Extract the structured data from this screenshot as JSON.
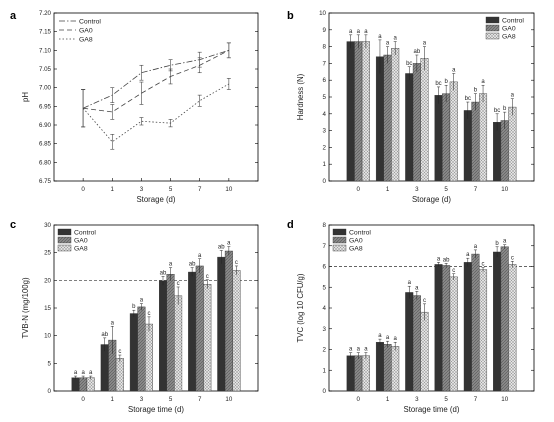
{
  "chart_data": [
    {
      "panel": "a",
      "type": "line",
      "xlabel": "Storage (d)",
      "ylabel": "pH",
      "categories": [
        "0",
        "1",
        "3",
        "5",
        "7",
        "10"
      ],
      "ylim": [
        6.75,
        7.2
      ],
      "yticks": [
        "6.75",
        "6.80",
        "6.85",
        "6.90",
        "6.95",
        "7.00",
        "7.05",
        "7.10",
        "7.15",
        "7.20"
      ],
      "legend_position": "top-left",
      "series": [
        {
          "name": "Control",
          "values": [
            6.945,
            6.98,
            7.04,
            7.06,
            7.075,
            7.1
          ],
          "err": [
            0.05,
            0.02,
            0.02,
            0.015,
            0.02,
            0.02
          ],
          "dash": "6 2 1.5 2",
          "marker": "none"
        },
        {
          "name": "GA0",
          "values": [
            6.945,
            6.935,
            6.985,
            7.03,
            7.06,
            7.1
          ],
          "err": [
            0.05,
            0.02,
            0.03,
            0.02,
            0.02,
            0.02
          ],
          "dash": "5 3",
          "marker": "none"
        },
        {
          "name": "GA8",
          "values": [
            6.945,
            6.855,
            6.91,
            6.905,
            6.965,
            7.01
          ],
          "err": [
            0.05,
            0.02,
            0.01,
            0.01,
            0.015,
            0.015
          ],
          "dash": "1.5 2",
          "marker": "none"
        }
      ]
    },
    {
      "panel": "b",
      "type": "bar",
      "xlabel": "Storage (d)",
      "ylabel": "Hardness (N)",
      "categories": [
        "0",
        "1",
        "3",
        "5",
        "7",
        "10"
      ],
      "ylim": [
        0,
        10
      ],
      "yticks": [
        "0",
        "1",
        "2",
        "3",
        "4",
        "5",
        "6",
        "7",
        "8",
        "9",
        "10"
      ],
      "legend_position": "top-right",
      "series": [
        {
          "name": "Control",
          "values": [
            8.3,
            7.4,
            6.4,
            5.1,
            4.2,
            3.5
          ],
          "err": [
            0.4,
            1.0,
            0.4,
            0.5,
            0.5,
            0.5
          ],
          "labels": [
            "a",
            "a",
            "bc",
            "bc",
            "bc",
            "bc"
          ],
          "color": "#333333",
          "pattern": "solid"
        },
        {
          "name": "GA0",
          "values": [
            8.3,
            7.5,
            7.0,
            5.2,
            4.7,
            3.6
          ],
          "err": [
            0.4,
            0.5,
            0.5,
            0.5,
            0.5,
            0.5
          ],
          "labels": [
            "a",
            "a",
            "ab",
            "b",
            "b",
            "b"
          ],
          "color": "#8a8a8a",
          "pattern": "hatch"
        },
        {
          "name": "GA8",
          "values": [
            8.3,
            7.9,
            7.3,
            5.9,
            5.2,
            4.4
          ],
          "err": [
            0.4,
            0.4,
            0.7,
            0.5,
            0.5,
            0.5
          ],
          "labels": [
            "a",
            "a",
            "a",
            "a",
            "a",
            "a"
          ],
          "color": "#d2d2d2",
          "pattern": "cross"
        }
      ]
    },
    {
      "panel": "c",
      "type": "bar",
      "xlabel": "Storage time (d)",
      "ylabel": "TVB-N (mg/100g)",
      "categories": [
        "0",
        "1",
        "3",
        "5",
        "7",
        "10"
      ],
      "ylim": [
        0,
        30
      ],
      "yticks": [
        "0",
        "5",
        "10",
        "15",
        "20",
        "25",
        "30"
      ],
      "reference_line": 20,
      "legend_position": "top-left",
      "series": [
        {
          "name": "Control",
          "values": [
            2.4,
            8.4,
            14.0,
            19.9,
            21.5,
            24.2
          ],
          "err": [
            0.3,
            1.2,
            0.6,
            0.8,
            0.8,
            1.2
          ],
          "labels": [
            "a",
            "ab",
            "b",
            "ab",
            "ab",
            "ab"
          ],
          "color": "#333333",
          "pattern": "solid"
        },
        {
          "name": "GA0",
          "values": [
            2.4,
            9.2,
            15.2,
            21.1,
            22.6,
            25.3
          ],
          "err": [
            0.3,
            2.5,
            0.6,
            1.2,
            1.3,
            0.8
          ],
          "labels": [
            "a",
            "a",
            "a",
            "a",
            "a",
            "a"
          ],
          "color": "#8a8a8a",
          "pattern": "hatch"
        },
        {
          "name": "GA8",
          "values": [
            2.4,
            5.9,
            12.1,
            17.2,
            19.3,
            21.8
          ],
          "err": [
            0.3,
            0.6,
            1.3,
            1.6,
            0.8,
            0.8
          ],
          "labels": [
            "a",
            "c",
            "c",
            "c",
            "c",
            "c"
          ],
          "color": "#d2d2d2",
          "pattern": "cross"
        }
      ]
    },
    {
      "panel": "d",
      "type": "bar",
      "xlabel": "Storage time (d)",
      "ylabel": "TVC (log 10 CFU/g)",
      "categories": [
        "0",
        "1",
        "3",
        "5",
        "7",
        "10"
      ],
      "ylim": [
        0,
        8
      ],
      "yticks": [
        "0",
        "1",
        "2",
        "3",
        "4",
        "5",
        "6",
        "7",
        "8"
      ],
      "reference_line": 6,
      "legend_position": "top-left",
      "series": [
        {
          "name": "Control",
          "values": [
            1.7,
            2.35,
            4.75,
            6.1,
            6.2,
            6.7
          ],
          "err": [
            0.15,
            0.15,
            0.3,
            0.1,
            0.2,
            0.25
          ],
          "labels": [
            "a",
            "a",
            "a",
            "a",
            "a",
            "b"
          ],
          "color": "#333333",
          "pattern": "solid"
        },
        {
          "name": "GA0",
          "values": [
            1.7,
            2.25,
            4.6,
            6.05,
            6.6,
            6.95
          ],
          "err": [
            0.15,
            0.15,
            0.2,
            0.1,
            0.2,
            0.1
          ],
          "labels": [
            "a",
            "a",
            "a",
            "ab",
            "a",
            "a"
          ],
          "color": "#8a8a8a",
          "pattern": "hatch"
        },
        {
          "name": "GA8",
          "values": [
            1.7,
            2.15,
            3.8,
            5.5,
            5.85,
            6.1
          ],
          "err": [
            0.15,
            0.2,
            0.4,
            0.15,
            0.1,
            0.15
          ],
          "labels": [
            "a",
            "a",
            "c",
            "c",
            "c",
            "c"
          ],
          "color": "#d2d2d2",
          "pattern": "cross"
        }
      ]
    }
  ]
}
